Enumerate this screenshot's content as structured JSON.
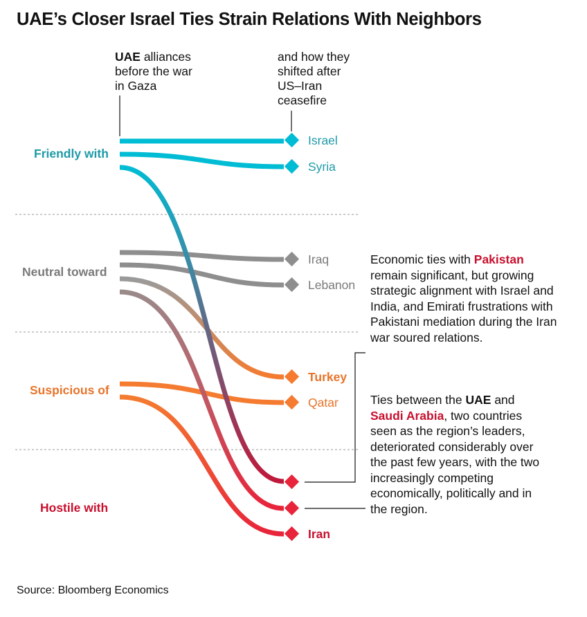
{
  "title": "UAE’s Closer Israel Ties Strain Relations With Neighbors",
  "headers": {
    "before_bold": "UAE",
    "before_l1": " alliances",
    "before_l2": "before the war",
    "before_l3": "in Gaza",
    "after_l1": "and how they",
    "after_l2": "shifted after",
    "after_l3": "US–Iran",
    "after_l4": "ceasefire"
  },
  "categories": {
    "friendly": {
      "label": "Friendly with",
      "color": "#1e9aa8"
    },
    "neutral": {
      "label": "Neutral toward",
      "color": "#7a7a7a"
    },
    "suspicious": {
      "label": "Suspicious of",
      "color": "#e8742a"
    },
    "hostile": {
      "label": "Hostile with",
      "color": "#c8102e"
    }
  },
  "targets": {
    "israel": {
      "label": "Israel",
      "color": "#1e9aa8"
    },
    "syria": {
      "label": "Syria",
      "color": "#1e9aa8"
    },
    "iraq": {
      "label": "Iraq",
      "color": "#7a7a7a"
    },
    "lebanon": {
      "label": "Lebanon",
      "color": "#7a7a7a"
    },
    "turkey": {
      "label": "Turkey",
      "color": "#e8742a"
    },
    "qatar": {
      "label": "Qatar",
      "color": "#e8742a"
    },
    "iran": {
      "label": "Iran",
      "color": "#c8102e"
    }
  },
  "notes": {
    "pakistan": {
      "a": "Economic ties with ",
      "b": "Pakistan",
      "c": " remain significant, but growing strategic alignment with Israel and India, and Emirati frustrations with Pakistani mediation during the Iran war soured relations."
    },
    "saudi": {
      "a": "Ties between the ",
      "b": "UAE",
      "c": " and ",
      "d": "Saudi Arabia",
      "e": ", two countries seen as the region’s leaders, deteriorated considerably over the past few years, with the two increasingly competing economically, politically and in the region."
    }
  },
  "source": "Source: Bloomberg Economics",
  "colors": {
    "friendly": "#00bcd4",
    "neutral": "#8e8e8e",
    "suspicious": "#f47b30",
    "hostile": "#e8243a"
  }
}
